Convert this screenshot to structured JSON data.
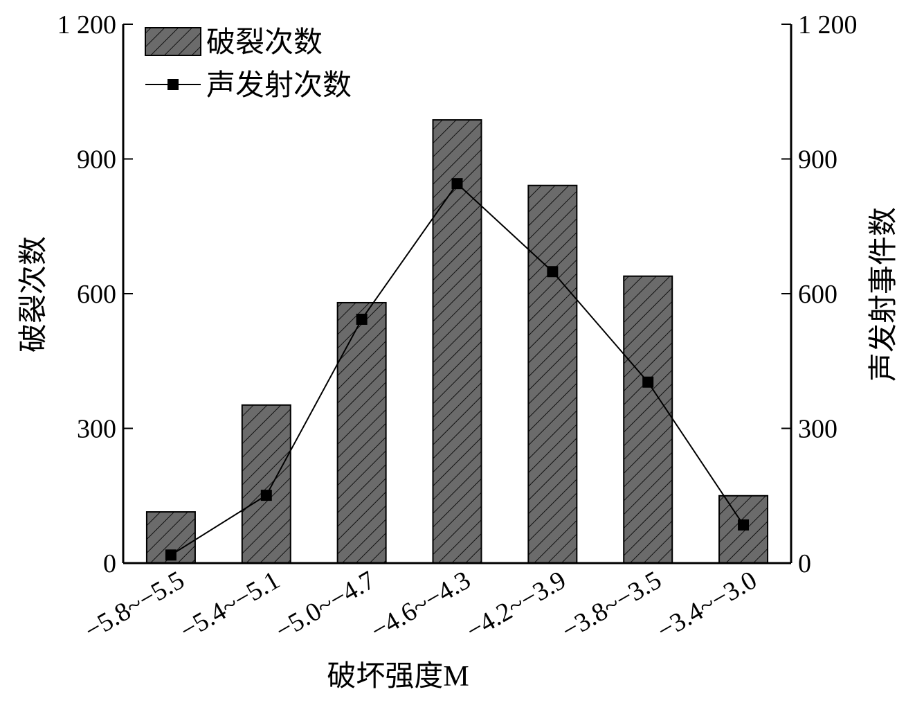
{
  "chart_data": {
    "type": "bar",
    "categories": [
      "−5.8~−5.5",
      "−5.4~−5.1",
      "−5.0~−4.7",
      "−4.6~−4.3",
      "−4.2~−3.9",
      "−3.8~−3.5",
      "−3.4~−3.0"
    ],
    "series": [
      {
        "name": "破裂次数",
        "type": "bar",
        "color": "#6b6b6b",
        "values": [
          114,
          352,
          580,
          987,
          841,
          639,
          150
        ]
      },
      {
        "name": "声发射次数",
        "type": "line",
        "color": "#000000",
        "axis": "y2",
        "values": [
          18,
          151,
          543,
          845,
          649,
          403,
          85
        ]
      }
    ],
    "x_label": "破坏强度M",
    "y_label": "破裂次数",
    "y2_label": "声发射事件数",
    "ylim": [
      0,
      1200
    ],
    "yticks": [
      0,
      300,
      600,
      900,
      {
        "value": 1200,
        "label": "1 200"
      }
    ],
    "y2lim": [
      0,
      1200
    ],
    "y2ticks": [
      0,
      300,
      600,
      900,
      {
        "value": 1200,
        "label": "1 200"
      }
    ],
    "legend": "upper left"
  }
}
